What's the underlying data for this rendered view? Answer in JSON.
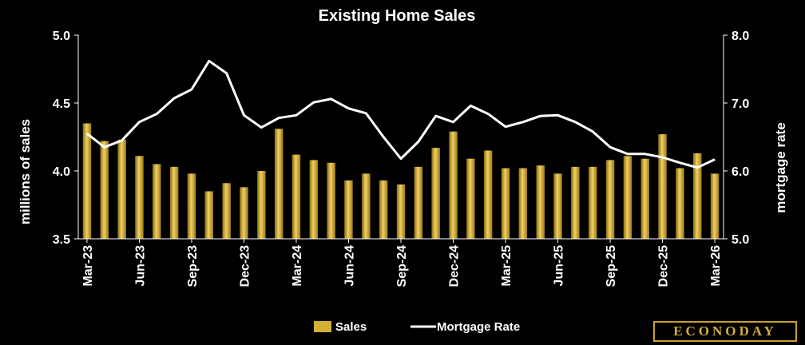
{
  "chart_data": {
    "type": "bar",
    "title": "Existing Home Sales",
    "ylabel": "millions of sales",
    "y2label": "mortgage rate",
    "ylim": [
      3.5,
      5.0
    ],
    "y2lim": [
      5.0,
      8.0
    ],
    "yticks": [
      "3.5",
      "4.0",
      "4.5",
      "5.0"
    ],
    "y2ticks": [
      "5.0",
      "6.0",
      "7.0",
      "8.0"
    ],
    "categories": [
      "Mar-23",
      "Apr-23",
      "May-23",
      "Jun-23",
      "Jul-23",
      "Aug-23",
      "Sep-23",
      "Oct-23",
      "Nov-23",
      "Dec-23",
      "Jan-24",
      "Feb-24",
      "Mar-24",
      "Apr-24",
      "May-24",
      "Jun-24",
      "Jul-24",
      "Aug-24",
      "Sep-24",
      "Oct-24",
      "Nov-24",
      "Dec-24",
      "Jan-25",
      "Feb-25",
      "Mar-25",
      "Apr-25",
      "May-25",
      "Jun-25",
      "Jul-25",
      "Aug-25",
      "Sep-25",
      "Oct-25",
      "Nov-25",
      "Dec-25",
      "Jan-26",
      "Feb-26",
      "Mar-26"
    ],
    "xtick_labels": [
      "Mar-23",
      "Jun-23",
      "Sep-23",
      "Dec-23",
      "Mar-24",
      "Jun-24",
      "Sep-24",
      "Dec-24",
      "Mar-25",
      "Jun-25",
      "Sep-25",
      "Dec-25",
      "Mar-26"
    ],
    "series": [
      {
        "name": "Sales",
        "kind": "bar",
        "axis": "left",
        "color": "#d4af37",
        "values": [
          4.35,
          4.22,
          4.23,
          4.11,
          4.05,
          4.03,
          3.98,
          3.85,
          3.91,
          3.88,
          4.0,
          4.31,
          4.12,
          4.08,
          4.06,
          3.93,
          3.98,
          3.93,
          3.9,
          4.03,
          4.17,
          4.29,
          4.09,
          4.15,
          4.02,
          4.02,
          4.04,
          3.98,
          4.03,
          4.03,
          4.08,
          4.11,
          4.09,
          4.27,
          4.02,
          4.13,
          3.98
        ]
      },
      {
        "name": "Mortgage Rate",
        "kind": "line",
        "axis": "right",
        "color": "#ffffff",
        "values": [
          6.55,
          6.35,
          6.45,
          6.72,
          6.84,
          7.07,
          7.2,
          7.62,
          7.44,
          6.82,
          6.64,
          6.78,
          6.82,
          7.01,
          7.06,
          6.92,
          6.85,
          6.5,
          6.18,
          6.43,
          6.81,
          6.72,
          6.96,
          6.84,
          6.65,
          6.72,
          6.81,
          6.82,
          6.72,
          6.58,
          6.35,
          6.25,
          6.25,
          6.2,
          6.12,
          6.05,
          6.17
        ]
      }
    ],
    "legend_position": "bottom-center",
    "grid": false
  },
  "legend": {
    "sales": "Sales",
    "mortgage": "Mortgage Rate"
  },
  "brand": "ECONODAY",
  "brand_mark": "®"
}
